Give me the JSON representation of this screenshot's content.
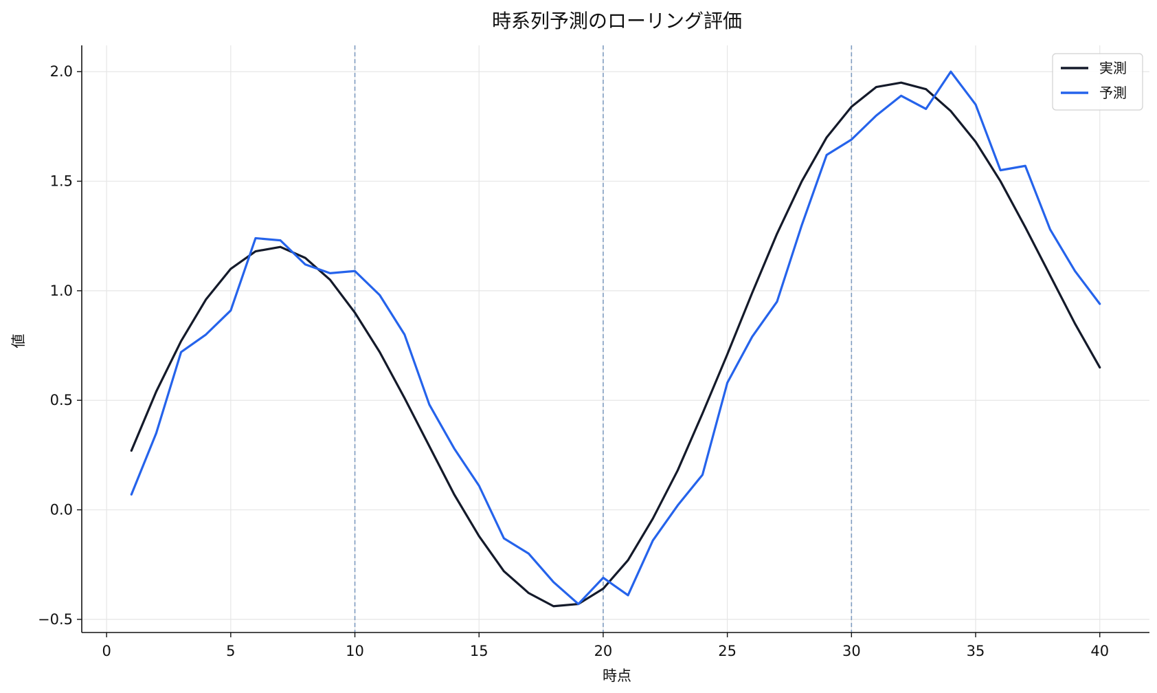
{
  "chart_data": {
    "type": "line",
    "title": "時系列予測のローリング評価",
    "xlabel": "時点",
    "ylabel": "値",
    "xlim": [
      -1,
      42
    ],
    "ylim": [
      -0.56,
      2.12
    ],
    "xticks": [
      0,
      5,
      10,
      15,
      20,
      25,
      30,
      35,
      40
    ],
    "yticks": [
      -0.5,
      0.0,
      0.5,
      1.0,
      1.5,
      2.0
    ],
    "xtick_labels": [
      "0",
      "5",
      "10",
      "15",
      "20",
      "25",
      "30",
      "35",
      "40"
    ],
    "ytick_labels": [
      "−0.5",
      "0.0",
      "0.5",
      "1.0",
      "1.5",
      "2.0"
    ],
    "grid": true,
    "legend_position": "top-right",
    "vertical_lines": [
      10,
      20,
      30
    ],
    "vertical_line_color": "#7f9cc0",
    "x": [
      1,
      2,
      3,
      4,
      5,
      6,
      7,
      8,
      9,
      10,
      11,
      12,
      13,
      14,
      15,
      16,
      17,
      18,
      19,
      20,
      21,
      22,
      23,
      24,
      25,
      26,
      27,
      28,
      29,
      30,
      31,
      32,
      33,
      34,
      35,
      36,
      37,
      38,
      39,
      40
    ],
    "series": [
      {
        "name": "実測",
        "color": "#141a2a",
        "values": [
          0.27,
          0.54,
          0.77,
          0.96,
          1.1,
          1.18,
          1.2,
          1.15,
          1.05,
          0.9,
          0.72,
          0.51,
          0.29,
          0.07,
          -0.12,
          -0.28,
          -0.38,
          -0.44,
          -0.43,
          -0.36,
          -0.23,
          -0.04,
          0.18,
          0.44,
          0.71,
          0.99,
          1.26,
          1.5,
          1.7,
          1.84,
          1.93,
          1.95,
          1.92,
          1.82,
          1.68,
          1.5,
          1.29,
          1.07,
          0.85,
          0.65
        ]
      },
      {
        "name": "予測",
        "color": "#2563eb",
        "values": [
          0.07,
          0.35,
          0.72,
          0.8,
          0.91,
          1.24,
          1.23,
          1.12,
          1.08,
          1.09,
          0.98,
          0.8,
          0.48,
          0.28,
          0.11,
          -0.13,
          -0.2,
          -0.33,
          -0.43,
          -0.31,
          -0.39,
          -0.14,
          0.02,
          0.16,
          0.58,
          0.79,
          0.95,
          1.3,
          1.62,
          1.69,
          1.8,
          1.89,
          1.83,
          2.0,
          1.85,
          1.55,
          1.57,
          1.28,
          1.09,
          0.94
        ]
      }
    ]
  }
}
